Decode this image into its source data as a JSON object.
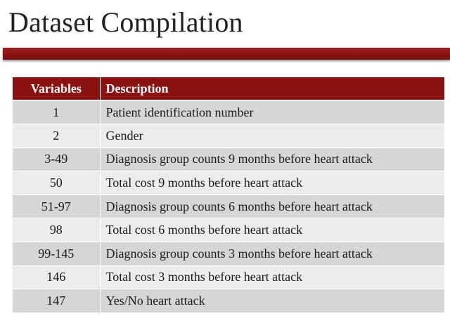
{
  "slide": {
    "title": "Dataset Compilation"
  },
  "table": {
    "headers": [
      "Variables",
      "Description"
    ],
    "rows": [
      {
        "variable": "1",
        "description": "Patient identification number"
      },
      {
        "variable": "2",
        "description": "Gender"
      },
      {
        "variable": "3-49",
        "description": "Diagnosis group counts 9 months before heart attack"
      },
      {
        "variable": "50",
        "description": "Total cost 9 months before heart attack"
      },
      {
        "variable": "51-97",
        "description": "Diagnosis group counts 6 months before heart attack"
      },
      {
        "variable": "98",
        "description": "Total cost 6 months before heart attack"
      },
      {
        "variable": "99-145",
        "description": "Diagnosis group counts 3 months before heart attack"
      },
      {
        "variable": "146",
        "description": "Total cost 3 months before heart attack"
      },
      {
        "variable": "147",
        "description": "Yes/No heart attack"
      }
    ]
  },
  "colors": {
    "accent": "#8b1212",
    "row_dark": "#d6d6d6",
    "row_light": "#ececec"
  }
}
